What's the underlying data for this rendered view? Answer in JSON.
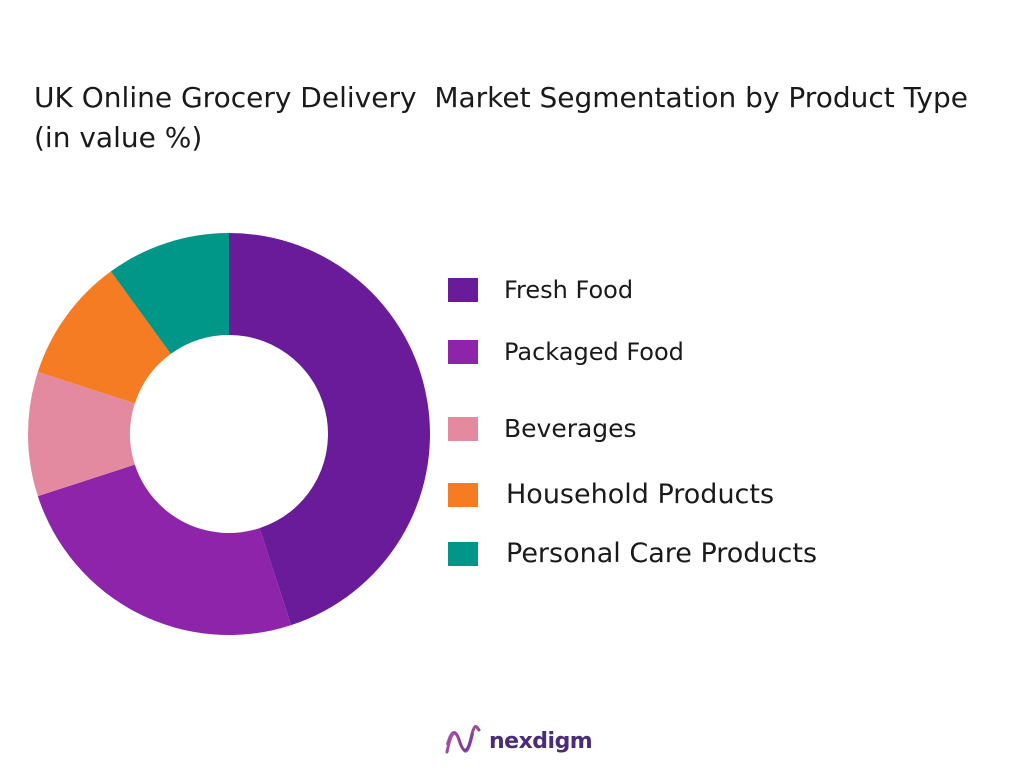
{
  "chart_data": {
    "type": "pie",
    "variant": "donut",
    "title": "UK Online Grocery Delivery  Market Segmentation by Product Type  (in value %)",
    "categories": [
      "Fresh Food",
      "Packaged Food",
      "Beverages",
      "Household Products",
      "Personal Care Products"
    ],
    "values": [
      45,
      25,
      10,
      10,
      10
    ],
    "colors": [
      "#6a1b9a",
      "#8e24aa",
      "#e48aa0",
      "#f57c22",
      "#009688"
    ],
    "legend": "right"
  },
  "brand": {
    "name": "nexdigm",
    "color": "#4a2c7a"
  }
}
